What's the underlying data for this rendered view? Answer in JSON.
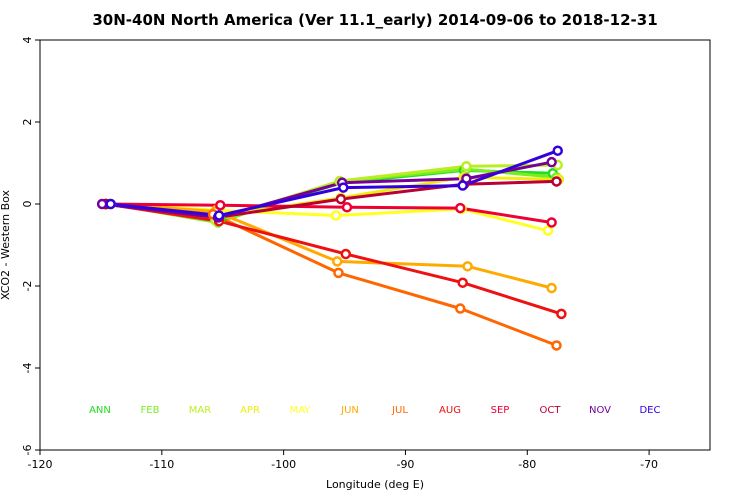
{
  "chart_data": {
    "type": "line",
    "title": "30N-40N North America (Ver 11.1_early)   2014-09-06 to 2018-12-31",
    "xlabel": "Longitude (deg E)",
    "ylabel": "XCO2 - Western Box",
    "xlim": [
      -120,
      -65
    ],
    "ylim": [
      -6,
      4
    ],
    "xticks": [
      -120,
      -110,
      -100,
      -90,
      -80,
      -70
    ],
    "yticks": [
      -6,
      -4,
      -2,
      0,
      2,
      4
    ],
    "legend_placement": "bottom",
    "grid": false,
    "series": [
      {
        "name": "ANN",
        "color": "#22dd22",
        "x": [
          -114.2,
          -105.2,
          -95.2,
          -85.2,
          -77.9
        ],
        "y": [
          0.0,
          -0.38,
          0.52,
          0.82,
          0.75
        ]
      },
      {
        "name": "FEB",
        "color": "#77ee22",
        "x": [
          -114.2,
          -105.4,
          -95.4,
          -85.0,
          -77.6
        ],
        "y": [
          0.0,
          -0.45,
          0.55,
          0.85,
          0.65
        ]
      },
      {
        "name": "MAR",
        "color": "#bbee22",
        "x": [
          -114.5,
          -105.6,
          -95.4,
          -85.0,
          -77.5
        ],
        "y": [
          0.0,
          -0.4,
          0.56,
          0.92,
          0.95
        ]
      },
      {
        "name": "APR",
        "color": "#eeee11",
        "x": [
          -114.6,
          -105.4,
          -95.3,
          -85.2,
          -77.4
        ],
        "y": [
          0.0,
          -0.3,
          0.15,
          0.65,
          0.6
        ]
      },
      {
        "name": "MAY",
        "color": "#ffff22",
        "x": [
          -114.6,
          -105.5,
          -95.7,
          -85.4,
          -78.3
        ],
        "y": [
          0.0,
          -0.15,
          -0.28,
          -0.12,
          -0.65
        ]
      },
      {
        "name": "JUN",
        "color": "#ffaa00",
        "x": [
          -114.6,
          -105.6,
          -95.6,
          -84.9,
          -78.0
        ],
        "y": [
          0.0,
          -0.18,
          -1.4,
          -1.52,
          -2.05
        ]
      },
      {
        "name": "JUL",
        "color": "#ff6600",
        "x": [
          -114.6,
          -105.8,
          -95.5,
          -85.5,
          -77.6
        ],
        "y": [
          0.0,
          -0.25,
          -1.68,
          -2.55,
          -3.45
        ]
      },
      {
        "name": "AUG",
        "color": "#ee1111",
        "x": [
          -114.6,
          -105.3,
          -94.9,
          -85.3,
          -77.2
        ],
        "y": [
          0.0,
          -0.42,
          -1.22,
          -1.92,
          -2.68
        ]
      },
      {
        "name": "SEP",
        "color": "#ee0033",
        "x": [
          -114.6,
          -105.2,
          -94.8,
          -85.5,
          -78.0
        ],
        "y": [
          0.0,
          -0.03,
          -0.08,
          -0.1,
          -0.45
        ]
      },
      {
        "name": "OCT",
        "color": "#bb0033",
        "x": [
          -114.6,
          -105.3,
          -95.3,
          -85.2,
          -77.6
        ],
        "y": [
          0.0,
          -0.32,
          0.12,
          0.48,
          0.55
        ]
      },
      {
        "name": "NOV",
        "color": "#770099",
        "x": [
          -114.9,
          -105.4,
          -95.2,
          -85.0,
          -78.0
        ],
        "y": [
          0.0,
          -0.33,
          0.52,
          0.62,
          1.02
        ]
      },
      {
        "name": "DEC",
        "color": "#3300dd",
        "x": [
          -114.2,
          -105.3,
          -95.1,
          -85.3,
          -77.5
        ],
        "y": [
          0.0,
          -0.28,
          0.4,
          0.45,
          1.3
        ]
      }
    ]
  }
}
